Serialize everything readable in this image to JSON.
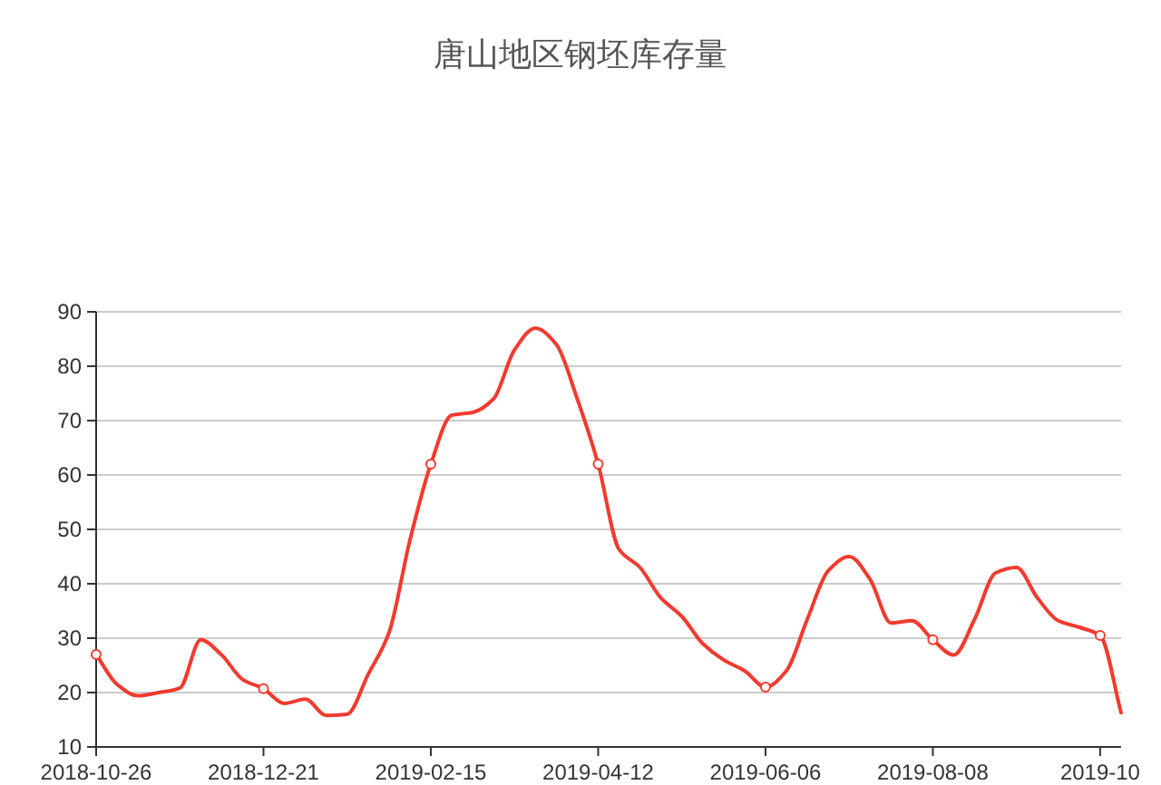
{
  "chart_data": {
    "type": "line",
    "title": "唐山地区钢坯库存量",
    "categories": [
      "2018-10-26",
      null,
      null,
      null,
      null,
      null,
      null,
      null,
      "2018-12-21",
      null,
      null,
      null,
      null,
      null,
      null,
      null,
      "2019-02-15",
      null,
      null,
      null,
      null,
      null,
      null,
      null,
      "2019-04-12",
      null,
      null,
      null,
      null,
      null,
      null,
      null,
      "2019-06-06",
      null,
      null,
      null,
      null,
      null,
      null,
      null,
      "2019-08-08",
      null,
      null,
      null,
      null,
      null,
      null,
      null,
      "2019-10",
      null
    ],
    "series": [
      {
        "color": "#f23a2f",
        "values": [
          27,
          21.5,
          19.4,
          20,
          20.8,
          29.7,
          26.9,
          22.4,
          20.7,
          18,
          18.8,
          15.8,
          16,
          23.3,
          31,
          48,
          62,
          71,
          71.5,
          74,
          83,
          87,
          84,
          74,
          62,
          46.3,
          43,
          37.4,
          34,
          29,
          26,
          24,
          21,
          24,
          33.5,
          42.4,
          45,
          40.8,
          32.8,
          33.2,
          29.7,
          26.9,
          33.5,
          42,
          43,
          37.4,
          33.2,
          32,
          30.5,
          16.3
        ]
      },
      {
        "type": "scatter",
        "marker": "circle",
        "color": "#f23a2f",
        "values": [
          27,
          null,
          null,
          null,
          null,
          null,
          null,
          null,
          20.7,
          null,
          null,
          null,
          null,
          null,
          null,
          null,
          62,
          null,
          null,
          null,
          null,
          null,
          null,
          null,
          62,
          null,
          null,
          null,
          null,
          null,
          null,
          null,
          21,
          null,
          null,
          null,
          null,
          null,
          null,
          null,
          29.7,
          null,
          null,
          null,
          null,
          null,
          null,
          null,
          30.5,
          null
        ]
      }
    ],
    "ylim": [
      10,
      90
    ],
    "yticks": [
      10,
      20,
      30,
      40,
      50,
      60,
      70,
      80,
      90
    ],
    "grid": "y",
    "line_style": "solid"
  }
}
